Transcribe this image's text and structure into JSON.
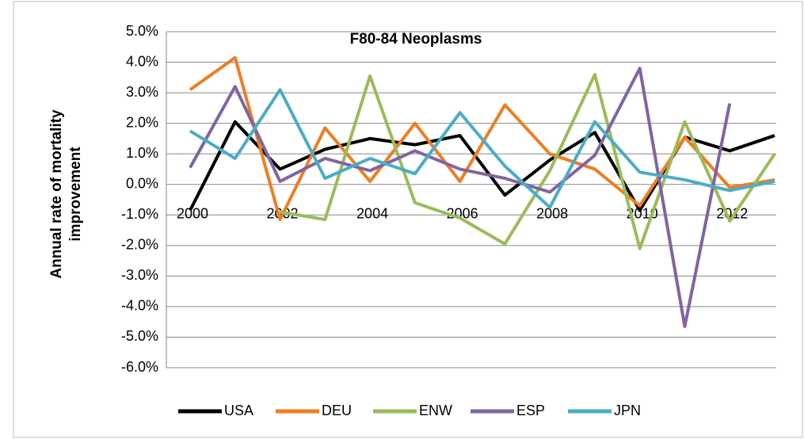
{
  "chart_data": {
    "type": "line",
    "title": "F80-84 Neoplasms",
    "y_label": [
      "Annual rate of mortality",
      "improvement"
    ],
    "x": [
      2000,
      2001,
      2002,
      2003,
      2004,
      2005,
      2006,
      2007,
      2008,
      2009,
      2010,
      2011,
      2012,
      2013
    ],
    "xlim": [
      2000,
      2013
    ],
    "xticks": [
      2000,
      2002,
      2004,
      2006,
      2008,
      2010,
      2012
    ],
    "ylim": [
      -6,
      5
    ],
    "yticks": [
      {
        "value": 5,
        "label": "5.0%"
      },
      {
        "value": 4,
        "label": "4.0%"
      },
      {
        "value": 3,
        "label": "3.0%"
      },
      {
        "value": 2,
        "label": "2.0%"
      },
      {
        "value": 1,
        "label": "1.0%"
      },
      {
        "value": 0,
        "label": "0.0%"
      },
      {
        "value": -1,
        "label": "-1.0%"
      },
      {
        "value": -2,
        "label": "-2.0%"
      },
      {
        "value": -3,
        "label": "-3.0%"
      },
      {
        "value": -4,
        "label": "-4.0%"
      },
      {
        "value": -5,
        "label": "-5.0%"
      },
      {
        "value": -6,
        "label": "-6.0%"
      }
    ],
    "grid": true,
    "legend": "bottom",
    "series": [
      {
        "name": "USA",
        "color": "#000000",
        "values": [
          -0.85,
          2.05,
          0.5,
          1.15,
          1.5,
          1.3,
          1.6,
          -0.35,
          0.8,
          1.7,
          -0.85,
          1.55,
          1.1,
          1.6
        ]
      },
      {
        "name": "DEU",
        "color": "#f07d22",
        "values": [
          3.1,
          4.15,
          -1.15,
          1.85,
          0.1,
          2.0,
          0.1,
          2.6,
          1.0,
          0.5,
          -0.7,
          1.55,
          -0.1,
          0.15
        ]
      },
      {
        "name": "ENW",
        "color": "#9bbb59",
        "values": [
          null,
          null,
          -0.9,
          -1.15,
          3.55,
          -0.6,
          -1.1,
          -1.95,
          0.45,
          3.6,
          -2.1,
          2.05,
          -1.2,
          1.0
        ]
      },
      {
        "name": "ESP",
        "color": "#8064a2",
        "values": [
          0.55,
          3.2,
          0.1,
          0.85,
          0.45,
          1.1,
          0.5,
          0.2,
          -0.25,
          0.95,
          3.8,
          -4.65,
          2.65,
          null
        ]
      },
      {
        "name": "JPN",
        "color": "#4bacc6",
        "values": [
          1.75,
          0.85,
          3.1,
          0.2,
          0.85,
          0.35,
          2.35,
          0.6,
          -0.75,
          2.05,
          0.4,
          0.15,
          -0.2,
          0.1
        ]
      }
    ]
  }
}
